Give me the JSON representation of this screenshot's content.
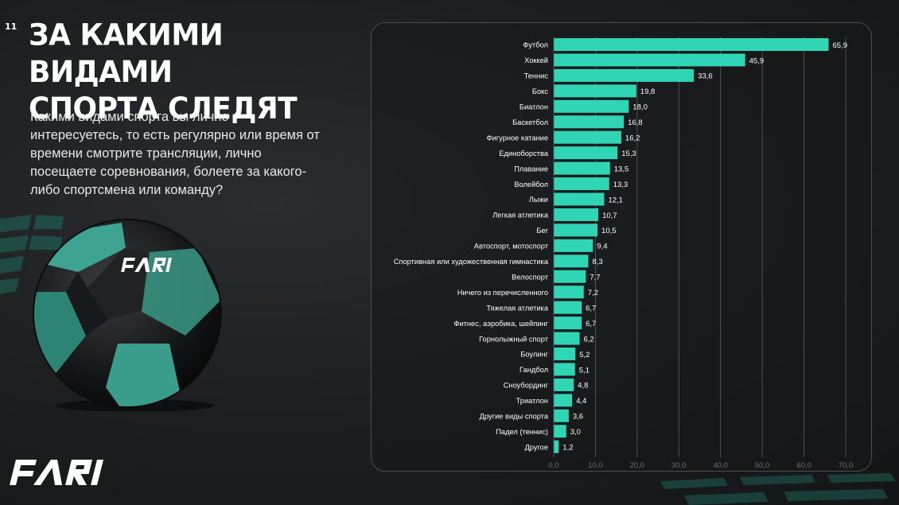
{
  "page": {
    "number": "11"
  },
  "header": {
    "title_line1": "ЗА КАКИМИ ВИДАМИ",
    "title_line2": "СПОРТА СЛЕДЯТ"
  },
  "question": "Какими видами спорта вы лично интересуетесь, то есть регулярно или время от времени смотрите трансляции, лично посещаете соревнования, болеете за какого-либо спортсмена или команду?",
  "colors": {
    "accent": "#2fd5b5",
    "background": "#1b1d1f",
    "grid": "#5a5e61",
    "tick": "#6c7073"
  },
  "chart_data": {
    "type": "bar",
    "orientation": "horizontal",
    "categories": [
      "Футбол",
      "Хоккей",
      "Теннис",
      "Бокс",
      "Биатлон",
      "Баскетбол",
      "Фигурное катание",
      "Единоборства",
      "Плавание",
      "Волейбол",
      "Лыжи",
      "Легкая атлетика",
      "Бег",
      "Автоспорт, мотоспорт",
      "Спортивная или художественная гимнастика",
      "Велоспорт",
      "Ничего из перечисленного",
      "Тяжелая атлетика",
      "Фитнес, аэробика, шейпинг",
      "Горнолыжный спорт",
      "Боулинг",
      "Гандбол",
      "Сноубординг",
      "Триатлон",
      "Другие виды спорта",
      "Падел (теннис)",
      "Другое"
    ],
    "values": [
      65.9,
      45.9,
      33.6,
      19.8,
      18.0,
      16.8,
      16.2,
      15.3,
      13.5,
      13.3,
      12.1,
      10.7,
      10.5,
      9.4,
      8.3,
      7.7,
      7.2,
      6.7,
      6.7,
      6.2,
      5.2,
      5.1,
      4.8,
      4.4,
      3.6,
      3.0,
      1.2
    ],
    "value_labels": [
      "65,9",
      "45,9",
      "33,6",
      "19,8",
      "18,0",
      "16,8",
      "16,2",
      "15,3",
      "13,5",
      "13,3",
      "12,1",
      "10,7",
      "10,5",
      "9,4",
      "8,3",
      "7,7",
      "7,2",
      "6,7",
      "6,7",
      "6,2",
      "5,2",
      "5,1",
      "4,8",
      "4,4",
      "3,6",
      "3,0",
      "1,2"
    ],
    "x_ticks": [
      0,
      10,
      20,
      30,
      40,
      50,
      60,
      70
    ],
    "x_tick_labels": [
      "0,0",
      "10,0",
      "20,0",
      "30,0",
      "40,0",
      "50,0",
      "60,0",
      "70,0"
    ],
    "xlim": [
      0,
      70
    ],
    "grid": true,
    "grid_axis": "x",
    "title": "",
    "xlabel": "",
    "ylabel": ""
  }
}
